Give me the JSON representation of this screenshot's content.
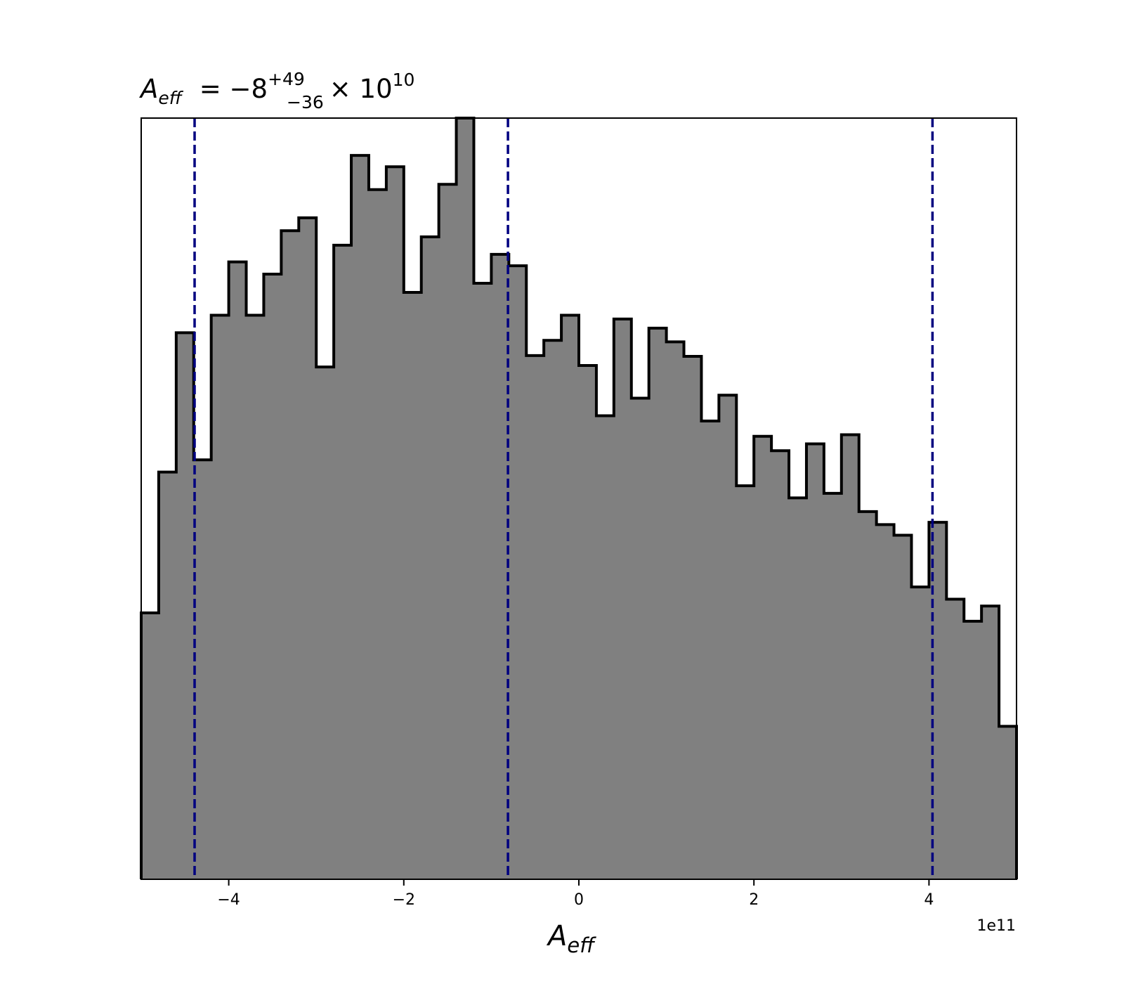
{
  "chart_data": {
    "type": "histogram",
    "title": {
      "symbol": "A",
      "symbol_subscript": "eff",
      "value_text": "= −8",
      "sup_text": "+49",
      "sub_text": "−36",
      "multiplier_text": "× 10",
      "exponent_text": "10"
    },
    "xlabel": {
      "symbol": "A",
      "subscript": "eff"
    },
    "ylabel": "",
    "x_offset_label": "1e11",
    "x_unit_scale": 100000000000,
    "xlim": [
      -5,
      5
    ],
    "ylim": [
      0,
      100
    ],
    "x_ticks": [
      -4,
      -2,
      0,
      2,
      4
    ],
    "x_tick_labels": [
      "−4",
      "−2",
      "0",
      "2",
      "4"
    ],
    "y_ticks_shown": false,
    "bin_edges_start": -5,
    "bin_width": 0.2,
    "counts": [
      35,
      53.5,
      71.8,
      55.1,
      74.1,
      81.1,
      74.1,
      79.5,
      85.2,
      86.9,
      67.3,
      83.3,
      95.1,
      90.6,
      93.6,
      77.1,
      84.4,
      91.3,
      100,
      78.3,
      82.1,
      80.6,
      68.8,
      70.8,
      74.1,
      67.5,
      60.9,
      73.6,
      63.2,
      72.4,
      70.6,
      68.7,
      60.2,
      63.6,
      51.7,
      58.2,
      56.3,
      50.1,
      57.2,
      50.7,
      58.4,
      48.3,
      46.6,
      45.2,
      38.4,
      46.9,
      36.8,
      33.9,
      35.9,
      20.1
    ],
    "fill_color": "#808080",
    "edge_color": "#000000",
    "quantile_lines": [
      {
        "x": -4.39
      },
      {
        "x": -0.81
      },
      {
        "x": 4.04
      }
    ],
    "quantile_line_color": "#000080",
    "quantile_line_style": "dashed",
    "grid": false
  }
}
